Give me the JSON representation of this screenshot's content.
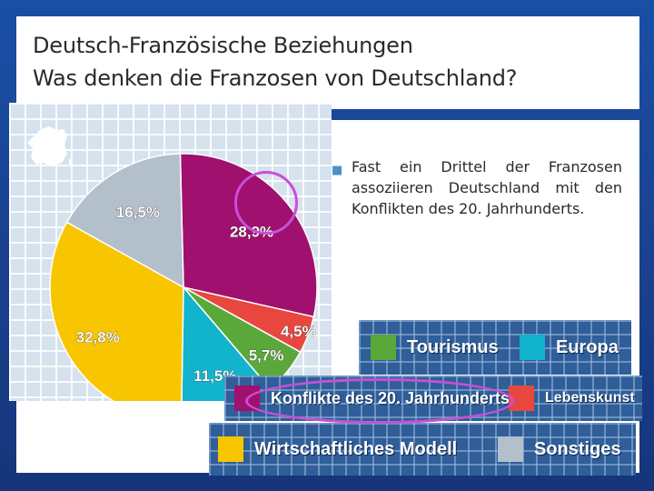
{
  "slide": {
    "title_line1": "Deutsch-Französische Beziehungen",
    "title_line2": "Was denken die Franzosen von Deutschland?",
    "bullet": "Fast ein Drittel der Franzosen assoziieren Deutschland mit den Konflikten des 20. Jahrhunderts."
  },
  "chart_data": {
    "type": "pie",
    "title": "Was denken die Franzosen von Deutschland?",
    "categories": [
      "Konflikte des 20. Jahrhunderts",
      "Lebenskunst",
      "Tourismus",
      "Europa",
      "Wirtschaftliches Modell",
      "Sonstiges"
    ],
    "values": [
      28.9,
      4.5,
      5.7,
      11.5,
      32.8,
      16.5
    ],
    "labels": [
      "28,9%",
      "4,5%",
      "5,7%",
      "11,5%",
      "32,8%",
      "16,5%"
    ],
    "colors": [
      "#a0106e",
      "#e8473f",
      "#5aa83a",
      "#12b3cc",
      "#f7c600",
      "#b3bfcb"
    ],
    "highlighted": "Konflikte des 20. Jahrhunderts",
    "legend": [
      {
        "label": "Tourismus",
        "color": "#5aa83a"
      },
      {
        "label": "Europa",
        "color": "#12b3cc"
      },
      {
        "label": "Konflikte des 20. Jahrhunderts",
        "color": "#a0106e"
      },
      {
        "label": "Lebenskunst",
        "color": "#e8473f"
      },
      {
        "label": "Wirtschaftliches Modell",
        "color": "#f7c600"
      },
      {
        "label": "Sonstiges",
        "color": "#b3bfcb"
      }
    ]
  }
}
